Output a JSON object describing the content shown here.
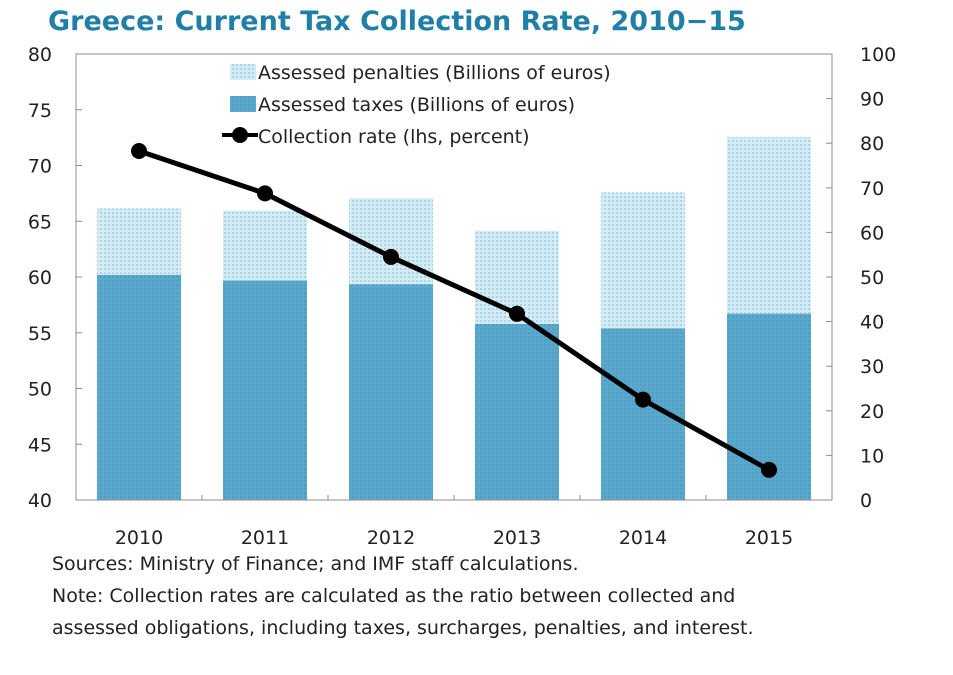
{
  "title": "Greece: Current Tax Collection Rate, 2010−15",
  "chart_data": {
    "type": "bar",
    "categories": [
      "2010",
      "2011",
      "2012",
      "2013",
      "2014",
      "2015"
    ],
    "series": [
      {
        "name": "Assessed penalties (Billions of euros)",
        "kind": "bar-stacked-top",
        "axis": "right",
        "values": [
          14.9,
          15.7,
          19.3,
          20.9,
          30.5,
          39.6
        ]
      },
      {
        "name": "Assessed taxes (Billions of euros)",
        "kind": "bar-stacked-bottom",
        "axis": "right",
        "values": [
          50.5,
          49.2,
          48.4,
          39.5,
          38.5,
          41.8
        ]
      },
      {
        "name": "Collection rate (lhs, percent)",
        "kind": "line",
        "axis": "left",
        "values": [
          71.3,
          67.5,
          61.8,
          56.7,
          49.0,
          42.7
        ]
      }
    ],
    "y_left": {
      "min": 40,
      "max": 80,
      "step": 5,
      "ticks": [
        "40",
        "45",
        "50",
        "55",
        "60",
        "65",
        "70",
        "75",
        "80"
      ]
    },
    "y_right": {
      "min": 0,
      "max": 100,
      "step": 10,
      "ticks": [
        "0",
        "10",
        "20",
        "30",
        "40",
        "50",
        "60",
        "70",
        "80",
        "90",
        "100"
      ]
    },
    "legend_position": "top-center",
    "colors": {
      "penalties": "#bfe1ef",
      "taxes": "#5aa9cd",
      "line": "#000000",
      "title": "#1f7fa6",
      "axis": "#8c8c8c"
    }
  },
  "notes": {
    "sources": "Sources: Ministry of Finance; and IMF staff calculations.",
    "note_line1": "Note: Collection rates are calculated as the ratio between collected and",
    "note_line2": "assessed obligations, including taxes, surcharges, penalties, and interest."
  }
}
